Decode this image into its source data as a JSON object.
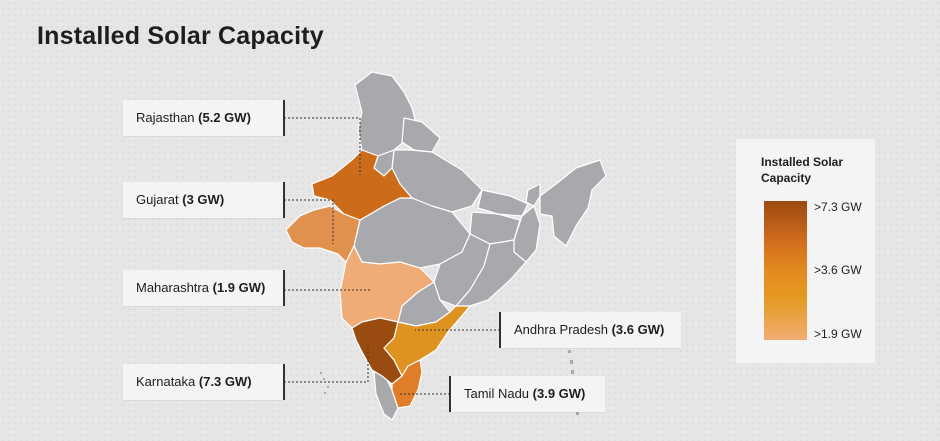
{
  "title": "Installed Solar Capacity",
  "colors": {
    "karnataka": "#9a4b10",
    "rajasthan": "#cc6b1a",
    "tamil_nadu": "#e07d28",
    "andhra_pradesh": "#de9321",
    "gujarat": "#e0914d",
    "maharashtra": "#f0ac76",
    "other_states": "#a8a9ad"
  },
  "states": [
    {
      "name": "Rajasthan",
      "value": "(5.2 GW)",
      "gw": 5.2
    },
    {
      "name": "Gujarat",
      "value": "(3 GW)",
      "gw": 3
    },
    {
      "name": "Maharashtra",
      "value": "(1.9 GW)",
      "gw": 1.9
    },
    {
      "name": "Karnataka",
      "value": "(7.3 GW)",
      "gw": 7.3
    },
    {
      "name": "Andhra Pradesh",
      "value": "(3.6 GW)",
      "gw": 3.6
    },
    {
      "name": "Tamil Nadu",
      "value": "(3.9 GW)",
      "gw": 3.9
    }
  ],
  "legend": {
    "title": "Installed Solar Capacity",
    "ticks": [
      ">7.3 GW",
      ">3.6 GW",
      ">1.9 GW"
    ]
  }
}
